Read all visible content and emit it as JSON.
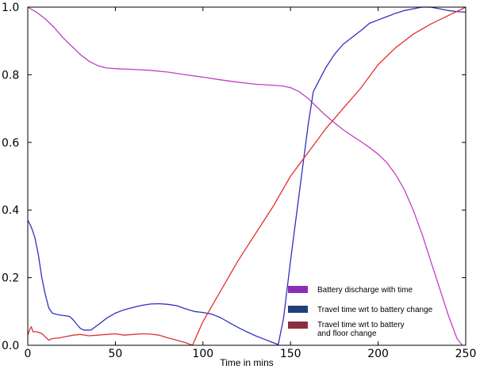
{
  "chart_data": {
    "type": "line",
    "title": "",
    "xlabel": "Time in mins",
    "ylabel": "",
    "xlim": [
      0,
      250
    ],
    "ylim": [
      0,
      1.0
    ],
    "xticks": [
      0,
      50,
      100,
      150,
      200,
      250
    ],
    "yticks": [
      0.0,
      0.2,
      0.4,
      0.6,
      0.8,
      1.0
    ],
    "grid": false,
    "legend_position": "lower-right",
    "series": [
      {
        "name": "Battery discharge with time",
        "color": "#c040c0",
        "swatch_color": "#8a2eb8",
        "points": [
          [
            0,
            1.0
          ],
          [
            5,
            0.985
          ],
          [
            10,
            0.965
          ],
          [
            15,
            0.94
          ],
          [
            20,
            0.91
          ],
          [
            25,
            0.885
          ],
          [
            30,
            0.86
          ],
          [
            35,
            0.84
          ],
          [
            40,
            0.827
          ],
          [
            45,
            0.82
          ],
          [
            50,
            0.818
          ],
          [
            60,
            0.816
          ],
          [
            70,
            0.813
          ],
          [
            80,
            0.808
          ],
          [
            90,
            0.8
          ],
          [
            100,
            0.793
          ],
          [
            110,
            0.785
          ],
          [
            120,
            0.778
          ],
          [
            130,
            0.772
          ],
          [
            140,
            0.769
          ],
          [
            145,
            0.767
          ],
          [
            150,
            0.762
          ],
          [
            155,
            0.75
          ],
          [
            160,
            0.73
          ],
          [
            165,
            0.705
          ],
          [
            170,
            0.68
          ],
          [
            175,
            0.658
          ],
          [
            180,
            0.638
          ],
          [
            185,
            0.62
          ],
          [
            190,
            0.603
          ],
          [
            195,
            0.585
          ],
          [
            200,
            0.565
          ],
          [
            205,
            0.54
          ],
          [
            210,
            0.505
          ],
          [
            215,
            0.46
          ],
          [
            220,
            0.4
          ],
          [
            225,
            0.33
          ],
          [
            230,
            0.25
          ],
          [
            235,
            0.17
          ],
          [
            240,
            0.09
          ],
          [
            245,
            0.02
          ],
          [
            248,
            0.0
          ]
        ]
      },
      {
        "name": "Travel time wrt to battery change",
        "color": "#3030c0",
        "swatch_color": "#1f3f7a",
        "points": [
          [
            0,
            0.37
          ],
          [
            2,
            0.35
          ],
          [
            4,
            0.32
          ],
          [
            6,
            0.27
          ],
          [
            8,
            0.2
          ],
          [
            10,
            0.15
          ],
          [
            12,
            0.11
          ],
          [
            14,
            0.095
          ],
          [
            16,
            0.092
          ],
          [
            18,
            0.09
          ],
          [
            20,
            0.088
          ],
          [
            22,
            0.087
          ],
          [
            24,
            0.085
          ],
          [
            26,
            0.075
          ],
          [
            28,
            0.062
          ],
          [
            30,
            0.05
          ],
          [
            32,
            0.045
          ],
          [
            36,
            0.045
          ],
          [
            40,
            0.06
          ],
          [
            45,
            0.08
          ],
          [
            50,
            0.095
          ],
          [
            55,
            0.105
          ],
          [
            60,
            0.112
          ],
          [
            65,
            0.118
          ],
          [
            70,
            0.122
          ],
          [
            75,
            0.123
          ],
          [
            80,
            0.121
          ],
          [
            85,
            0.117
          ],
          [
            90,
            0.108
          ],
          [
            95,
            0.1
          ],
          [
            100,
            0.097
          ],
          [
            105,
            0.092
          ],
          [
            110,
            0.082
          ],
          [
            115,
            0.067
          ],
          [
            120,
            0.053
          ],
          [
            125,
            0.04
          ],
          [
            130,
            0.028
          ],
          [
            135,
            0.018
          ],
          [
            140,
            0.008
          ],
          [
            143,
            0.002
          ],
          [
            146,
            0.08
          ],
          [
            150,
            0.25
          ],
          [
            155,
            0.45
          ],
          [
            160,
            0.65
          ],
          [
            163,
            0.75
          ],
          [
            166,
            0.78
          ],
          [
            170,
            0.82
          ],
          [
            175,
            0.86
          ],
          [
            180,
            0.89
          ],
          [
            185,
            0.91
          ],
          [
            190,
            0.93
          ],
          [
            195,
            0.952
          ],
          [
            200,
            0.962
          ],
          [
            205,
            0.972
          ],
          [
            210,
            0.982
          ],
          [
            215,
            0.99
          ],
          [
            220,
            0.995
          ],
          [
            225,
            1.0
          ],
          [
            230,
            1.0
          ],
          [
            235,
            0.995
          ],
          [
            240,
            0.99
          ],
          [
            245,
            0.987
          ],
          [
            250,
            0.985
          ]
        ]
      },
      {
        "name": "Travel time  wrt to battery and floor change",
        "color": "#e03030",
        "swatch_color": "#8a2e3e",
        "points": [
          [
            0,
            0.03
          ],
          [
            1,
            0.045
          ],
          [
            2,
            0.055
          ],
          [
            3,
            0.04
          ],
          [
            5,
            0.04
          ],
          [
            8,
            0.035
          ],
          [
            10,
            0.025
          ],
          [
            12,
            0.015
          ],
          [
            14,
            0.02
          ],
          [
            18,
            0.022
          ],
          [
            22,
            0.026
          ],
          [
            26,
            0.03
          ],
          [
            30,
            0.032
          ],
          [
            35,
            0.028
          ],
          [
            40,
            0.03
          ],
          [
            45,
            0.032
          ],
          [
            50,
            0.034
          ],
          [
            55,
            0.03
          ],
          [
            60,
            0.032
          ],
          [
            65,
            0.034
          ],
          [
            70,
            0.033
          ],
          [
            75,
            0.03
          ],
          [
            80,
            0.022
          ],
          [
            85,
            0.015
          ],
          [
            90,
            0.008
          ],
          [
            94,
            0.0
          ],
          [
            100,
            0.07
          ],
          [
            110,
            0.16
          ],
          [
            120,
            0.25
          ],
          [
            130,
            0.33
          ],
          [
            140,
            0.41
          ],
          [
            150,
            0.5
          ],
          [
            160,
            0.57
          ],
          [
            170,
            0.64
          ],
          [
            180,
            0.7
          ],
          [
            190,
            0.76
          ],
          [
            200,
            0.83
          ],
          [
            210,
            0.88
          ],
          [
            220,
            0.92
          ],
          [
            230,
            0.95
          ],
          [
            240,
            0.975
          ],
          [
            250,
            1.0
          ]
        ]
      }
    ],
    "legend": {
      "labels": [
        "Battery discharge with time",
        "Travel time wrt to battery change",
        "Travel time  wrt to battery",
        "and floor change"
      ]
    }
  }
}
